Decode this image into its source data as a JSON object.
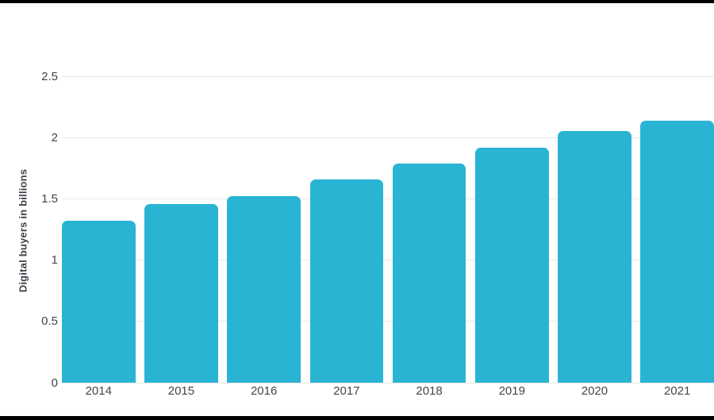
{
  "chart_data": {
    "type": "bar",
    "title": "",
    "xlabel": "",
    "ylabel": "Digital buyers in billions",
    "categories": [
      "2014",
      "2015",
      "2016",
      "2017",
      "2018",
      "2019",
      "2020",
      "2021"
    ],
    "values": [
      1.32,
      1.46,
      1.52,
      1.66,
      1.79,
      1.92,
      2.05,
      2.14
    ],
    "series_name": "Digital buyers in billions",
    "ylim": [
      0,
      2.5
    ],
    "yticks": [
      0,
      0.5,
      1,
      1.5,
      2,
      2.5
    ],
    "ytick_labels": [
      "0",
      "0.5",
      "1",
      "1.5",
      "2",
      "2.5"
    ],
    "grid": true,
    "legend": "none",
    "bar_color": "#2ab4d4",
    "gridline_color": "#e7e7e7",
    "text_color": "#44444e",
    "frame_color": "#000000"
  }
}
